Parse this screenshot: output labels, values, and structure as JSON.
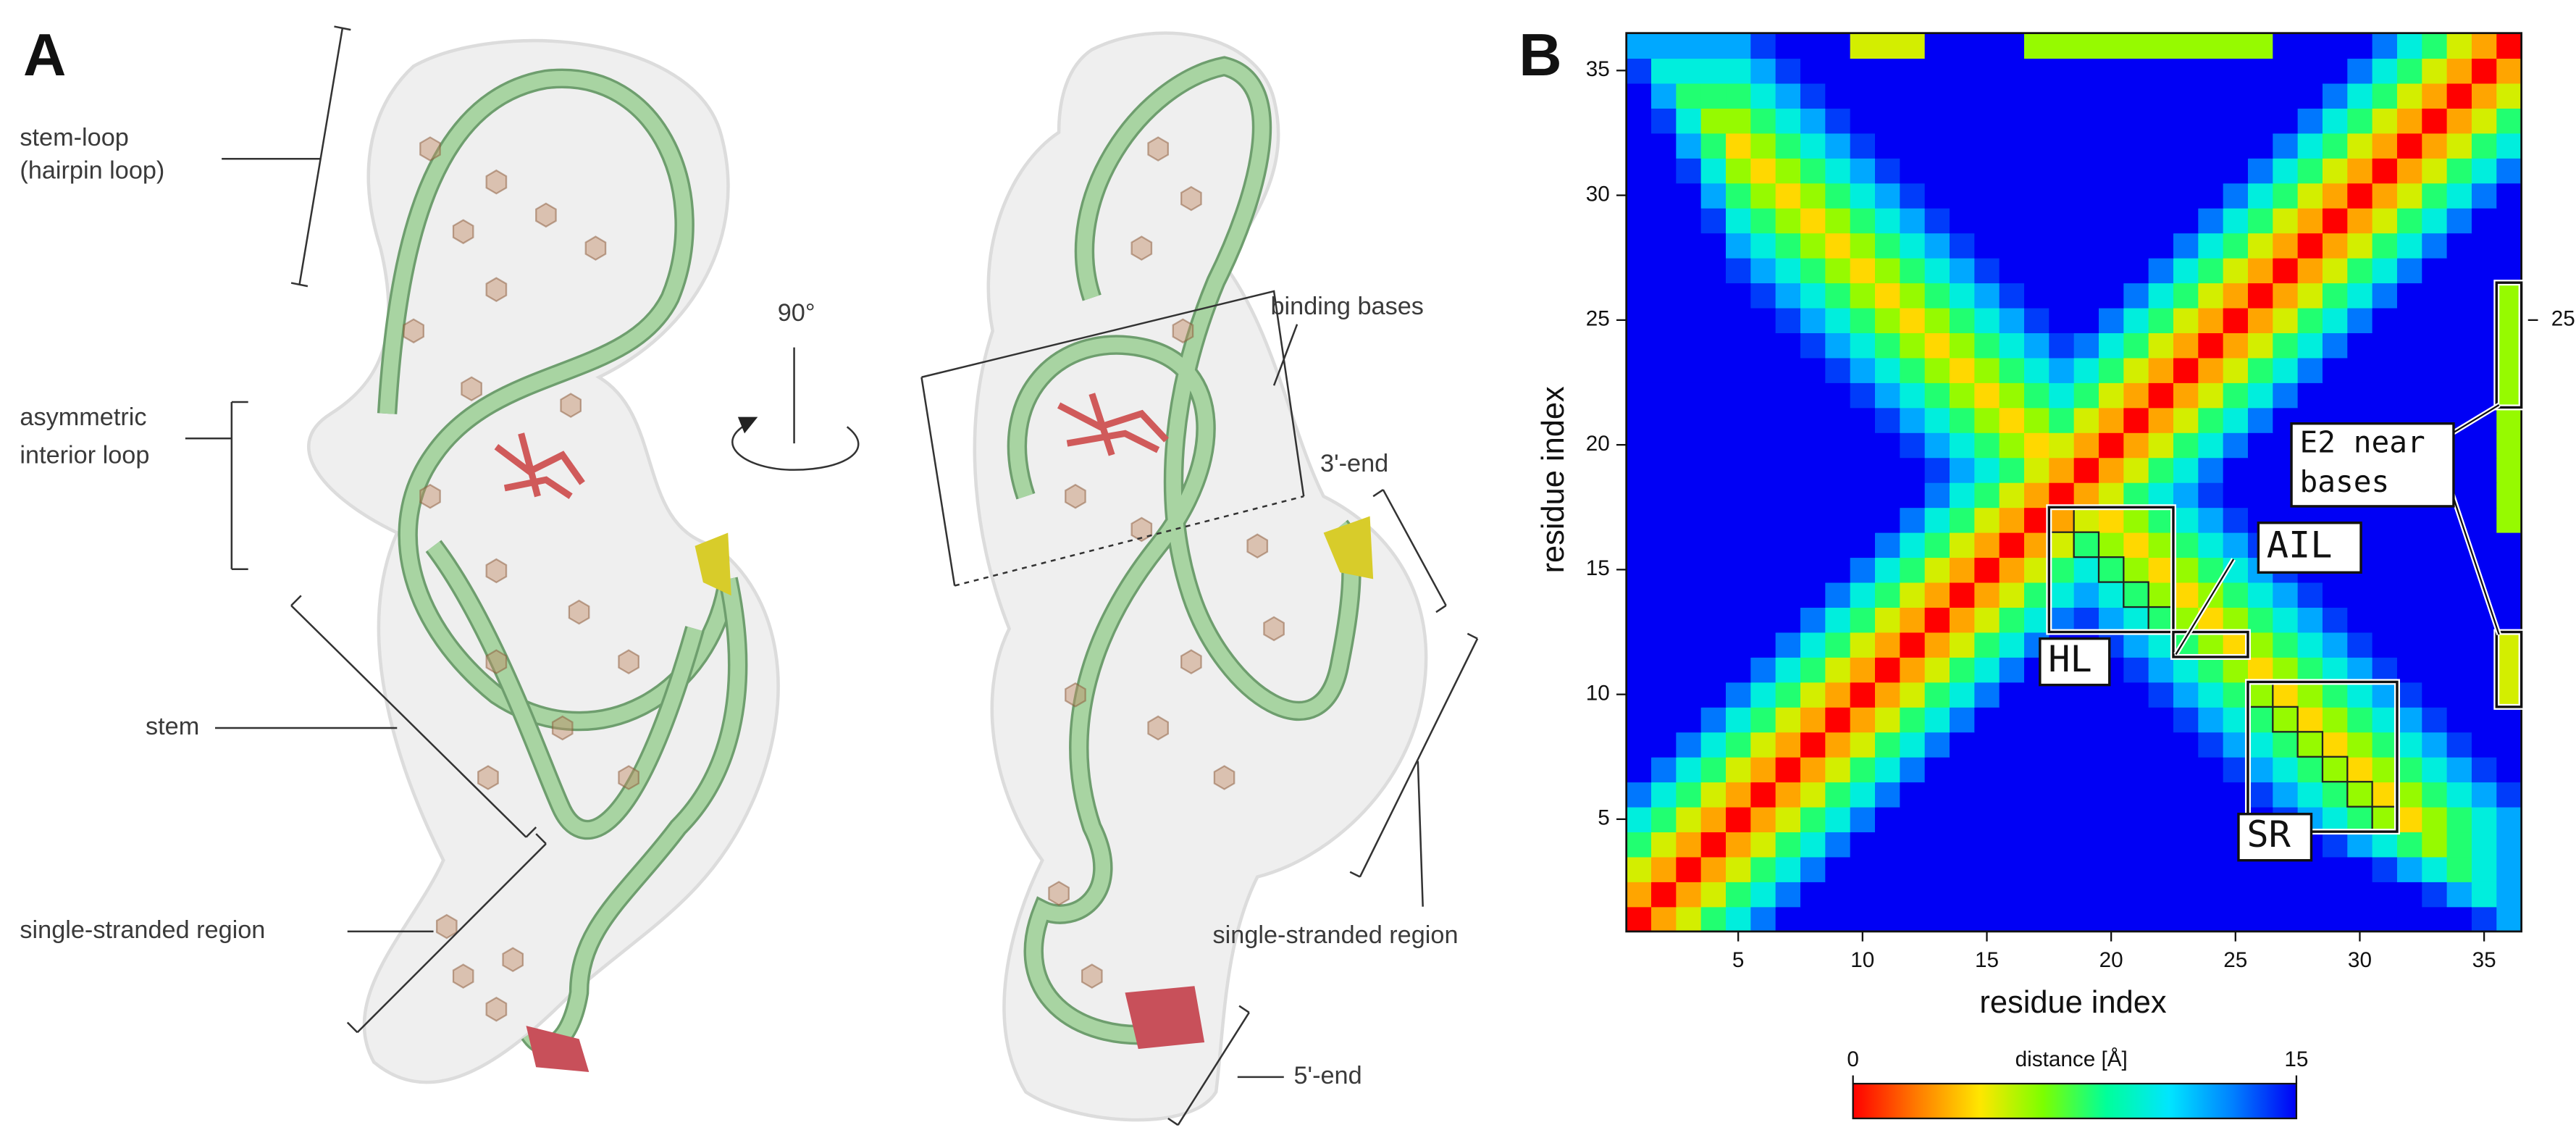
{
  "panel_a": {
    "label": "A",
    "rotation": "90°",
    "left": {
      "stem_loop": [
        "stem-loop",
        "(hairpin loop)"
      ],
      "interior_loop": [
        "asymmetric",
        "interior loop"
      ],
      "stem": "stem",
      "single_stranded": "single-stranded region"
    },
    "right": {
      "binding_bases": "binding bases",
      "three_end": "3'-end",
      "single_stranded": "single-stranded region",
      "five_end": "5'-end"
    }
  },
  "chart_data": {
    "type": "heatmap",
    "panel_label": "B",
    "xlabel": "residue index",
    "ylabel": "residue index",
    "x": [
      1,
      2,
      3,
      4,
      5,
      6,
      7,
      8,
      9,
      10,
      11,
      12,
      13,
      14,
      15,
      16,
      17,
      18,
      19,
      20,
      21,
      22,
      23,
      24,
      25,
      26,
      27,
      28,
      29,
      30,
      31,
      32,
      33,
      34,
      35,
      36
    ],
    "y": [
      1,
      2,
      3,
      4,
      5,
      6,
      7,
      8,
      9,
      10,
      11,
      12,
      13,
      14,
      15,
      16,
      17,
      18,
      19,
      20,
      21,
      22,
      23,
      24,
      25,
      26,
      27,
      28,
      29,
      30,
      31,
      32,
      33,
      34,
      35,
      36
    ],
    "xlim": [
      0.5,
      36.5
    ],
    "ylim": [
      0.5,
      36.5
    ],
    "xticks": [
      5,
      10,
      15,
      20,
      25,
      30,
      35
    ],
    "yticks": [
      5,
      10,
      15,
      20,
      25,
      30,
      35
    ],
    "y2lim": [
      0.5,
      36.5
    ],
    "y2ticks": [
      25
    ],
    "zlim": [
      0,
      15
    ],
    "colorbar_ticks": [
      0,
      15
    ],
    "colorbar_label": "distance  [Å]",
    "colorscale": [
      "#ff0000",
      "#ff7a00",
      "#ffe600",
      "#7cff00",
      "#00ff9a",
      "#00e5ff",
      "#0080ff",
      "#0000f5"
    ],
    "annotations": [
      {
        "text": [
          "HL"
        ]
      },
      {
        "text": [
          "AIL"
        ]
      },
      {
        "text": [
          "SR"
        ]
      },
      {
        "text": [
          "E2 near",
          "bases"
        ]
      }
    ],
    "z": [
      [
        0,
        3,
        5,
        8,
        10,
        13,
        15,
        15,
        15,
        15,
        15,
        15,
        15,
        15,
        15,
        15,
        15,
        15,
        15,
        15,
        15,
        15,
        15,
        15,
        15,
        15,
        15,
        15,
        15,
        15,
        15,
        15,
        15,
        15,
        14,
        12
      ],
      [
        3,
        0,
        3,
        5,
        8,
        10,
        13,
        15,
        15,
        15,
        15,
        15,
        15,
        15,
        15,
        15,
        15,
        15,
        15,
        15,
        15,
        15,
        15,
        15,
        15,
        15,
        15,
        15,
        15,
        15,
        15,
        15,
        14,
        12,
        10,
        12
      ],
      [
        5,
        3,
        0,
        3,
        5,
        8,
        10,
        13,
        15,
        15,
        15,
        15,
        15,
        15,
        15,
        15,
        15,
        15,
        15,
        15,
        15,
        15,
        15,
        15,
        15,
        15,
        15,
        15,
        15,
        15,
        14,
        12,
        10,
        8,
        10,
        12
      ],
      [
        8,
        5,
        3,
        0,
        3,
        5,
        8,
        10,
        13,
        15,
        15,
        15,
        15,
        15,
        15,
        15,
        15,
        15,
        15,
        15,
        15,
        15,
        15,
        15,
        15,
        15,
        15,
        15,
        14,
        12,
        10,
        8,
        6,
        8,
        10,
        12
      ],
      [
        10,
        8,
        5,
        3,
        0,
        3,
        5,
        8,
        10,
        13,
        15,
        15,
        15,
        15,
        15,
        15,
        15,
        15,
        15,
        15,
        15,
        15,
        15,
        15,
        15,
        15,
        14,
        12,
        10,
        8,
        6,
        4,
        6,
        8,
        10,
        12
      ],
      [
        13,
        10,
        8,
        5,
        3,
        0,
        3,
        5,
        8,
        10,
        13,
        15,
        15,
        15,
        15,
        15,
        15,
        15,
        15,
        15,
        15,
        15,
        15,
        15,
        15,
        14,
        12,
        10,
        8,
        6,
        4,
        6,
        8,
        10,
        12,
        14
      ],
      [
        15,
        13,
        10,
        8,
        5,
        3,
        0,
        3,
        5,
        8,
        10,
        13,
        15,
        15,
        15,
        15,
        15,
        15,
        15,
        15,
        15,
        15,
        15,
        15,
        14,
        12,
        10,
        8,
        6,
        4,
        6,
        8,
        10,
        12,
        14,
        15
      ],
      [
        15,
        15,
        13,
        10,
        8,
        5,
        3,
        0,
        3,
        5,
        8,
        10,
        13,
        15,
        15,
        15,
        15,
        15,
        15,
        15,
        15,
        15,
        15,
        14,
        12,
        10,
        8,
        6,
        4,
        6,
        8,
        10,
        12,
        14,
        15,
        15
      ],
      [
        15,
        15,
        15,
        13,
        10,
        8,
        5,
        3,
        0,
        3,
        5,
        8,
        10,
        13,
        15,
        15,
        15,
        15,
        15,
        15,
        15,
        15,
        14,
        12,
        10,
        8,
        6,
        4,
        6,
        8,
        10,
        12,
        14,
        15,
        15,
        15
      ],
      [
        15,
        15,
        15,
        15,
        13,
        10,
        8,
        5,
        3,
        0,
        3,
        5,
        8,
        10,
        13,
        15,
        15,
        15,
        15,
        15,
        15,
        14,
        12,
        10,
        8,
        6,
        4,
        6,
        8,
        10,
        12,
        14,
        15,
        15,
        15,
        5
      ],
      [
        15,
        15,
        15,
        15,
        15,
        13,
        10,
        8,
        5,
        3,
        0,
        3,
        5,
        8,
        10,
        13,
        15,
        15,
        15,
        15,
        14,
        12,
        10,
        8,
        6,
        4,
        6,
        8,
        10,
        12,
        14,
        15,
        15,
        15,
        15,
        5
      ],
      [
        15,
        15,
        15,
        15,
        15,
        15,
        13,
        10,
        8,
        5,
        3,
        0,
        3,
        5,
        8,
        10,
        13,
        15,
        15,
        14,
        12,
        10,
        8,
        6,
        4,
        6,
        8,
        10,
        12,
        14,
        15,
        15,
        15,
        15,
        15,
        5
      ],
      [
        15,
        15,
        15,
        15,
        15,
        15,
        15,
        13,
        10,
        8,
        5,
        3,
        0,
        3,
        5,
        8,
        10,
        13,
        14,
        12,
        10,
        8,
        6,
        4,
        6,
        8,
        10,
        12,
        14,
        15,
        15,
        15,
        15,
        15,
        15,
        15
      ],
      [
        15,
        15,
        15,
        15,
        15,
        15,
        15,
        15,
        13,
        10,
        8,
        5,
        3,
        0,
        3,
        5,
        8,
        10,
        12,
        10,
        8,
        6,
        4,
        6,
        8,
        10,
        12,
        14,
        15,
        15,
        15,
        15,
        15,
        15,
        15,
        15
      ],
      [
        15,
        15,
        15,
        15,
        15,
        15,
        15,
        15,
        15,
        13,
        10,
        8,
        5,
        3,
        0,
        3,
        5,
        8,
        10,
        8,
        6,
        4,
        6,
        8,
        10,
        12,
        14,
        15,
        15,
        15,
        15,
        15,
        15,
        15,
        15,
        15
      ],
      [
        15,
        15,
        15,
        15,
        15,
        15,
        15,
        15,
        15,
        15,
        13,
        10,
        8,
        5,
        3,
        0,
        3,
        5,
        8,
        6,
        4,
        6,
        8,
        10,
        12,
        14,
        15,
        15,
        15,
        15,
        15,
        15,
        15,
        15,
        15,
        15
      ],
      [
        15,
        15,
        15,
        15,
        15,
        15,
        15,
        15,
        15,
        15,
        15,
        13,
        10,
        8,
        5,
        3,
        0,
        3,
        5,
        4,
        6,
        8,
        10,
        12,
        14,
        15,
        15,
        15,
        15,
        15,
        15,
        15,
        15,
        15,
        15,
        6
      ],
      [
        15,
        15,
        15,
        15,
        15,
        15,
        15,
        15,
        15,
        15,
        15,
        15,
        13,
        10,
        8,
        5,
        3,
        0,
        3,
        5,
        8,
        10,
        12,
        14,
        15,
        15,
        15,
        15,
        15,
        15,
        15,
        15,
        15,
        15,
        15,
        6
      ],
      [
        15,
        15,
        15,
        15,
        15,
        15,
        15,
        15,
        15,
        15,
        15,
        15,
        14,
        12,
        10,
        8,
        5,
        3,
        0,
        3,
        5,
        8,
        10,
        13,
        15,
        15,
        15,
        15,
        15,
        15,
        15,
        15,
        15,
        15,
        15,
        6
      ],
      [
        15,
        15,
        15,
        15,
        15,
        15,
        15,
        15,
        15,
        15,
        15,
        14,
        12,
        10,
        8,
        6,
        4,
        5,
        3,
        0,
        3,
        5,
        8,
        10,
        13,
        15,
        15,
        15,
        15,
        15,
        15,
        15,
        15,
        15,
        15,
        6
      ],
      [
        15,
        15,
        15,
        15,
        15,
        15,
        15,
        15,
        15,
        15,
        14,
        12,
        10,
        8,
        6,
        4,
        6,
        8,
        5,
        3,
        0,
        3,
        5,
        8,
        10,
        13,
        15,
        15,
        15,
        15,
        15,
        15,
        15,
        15,
        15,
        6
      ],
      [
        15,
        15,
        15,
        15,
        15,
        15,
        15,
        15,
        15,
        14,
        12,
        10,
        8,
        6,
        4,
        6,
        8,
        10,
        8,
        5,
        3,
        0,
        3,
        5,
        8,
        10,
        13,
        15,
        15,
        15,
        15,
        15,
        15,
        15,
        15,
        6
      ],
      [
        15,
        15,
        15,
        15,
        15,
        15,
        15,
        15,
        14,
        12,
        10,
        8,
        6,
        4,
        6,
        8,
        10,
        12,
        10,
        8,
        5,
        3,
        0,
        3,
        5,
        8,
        10,
        13,
        15,
        15,
        15,
        15,
        15,
        15,
        15,
        6
      ],
      [
        15,
        15,
        15,
        15,
        15,
        15,
        15,
        14,
        12,
        10,
        8,
        6,
        4,
        6,
        8,
        10,
        12,
        14,
        13,
        10,
        8,
        5,
        3,
        0,
        3,
        5,
        8,
        10,
        13,
        15,
        15,
        15,
        15,
        15,
        15,
        6
      ],
      [
        15,
        15,
        15,
        15,
        15,
        15,
        14,
        12,
        10,
        8,
        6,
        4,
        6,
        8,
        10,
        12,
        14,
        15,
        15,
        13,
        10,
        8,
        5,
        3,
        0,
        3,
        5,
        8,
        10,
        13,
        15,
        15,
        15,
        15,
        15,
        6
      ],
      [
        15,
        15,
        15,
        15,
        15,
        14,
        12,
        10,
        8,
        6,
        4,
        6,
        8,
        10,
        12,
        14,
        15,
        15,
        15,
        15,
        13,
        10,
        8,
        5,
        3,
        0,
        3,
        5,
        8,
        10,
        13,
        15,
        15,
        15,
        15,
        6
      ],
      [
        15,
        15,
        15,
        15,
        14,
        12,
        10,
        8,
        6,
        4,
        6,
        8,
        10,
        12,
        14,
        15,
        15,
        15,
        15,
        15,
        15,
        13,
        10,
        8,
        5,
        3,
        0,
        3,
        5,
        8,
        10,
        13,
        15,
        15,
        15,
        15
      ],
      [
        15,
        15,
        15,
        15,
        12,
        10,
        8,
        6,
        4,
        6,
        8,
        10,
        12,
        14,
        15,
        15,
        15,
        15,
        15,
        15,
        15,
        15,
        13,
        10,
        8,
        5,
        3,
        0,
        3,
        5,
        8,
        10,
        13,
        15,
        15,
        15
      ],
      [
        15,
        15,
        15,
        14,
        10,
        8,
        6,
        4,
        6,
        8,
        10,
        12,
        14,
        15,
        15,
        15,
        15,
        15,
        15,
        15,
        15,
        15,
        15,
        13,
        10,
        8,
        5,
        3,
        0,
        3,
        5,
        8,
        10,
        13,
        15,
        15
      ],
      [
        15,
        15,
        15,
        12,
        8,
        6,
        4,
        6,
        8,
        10,
        12,
        14,
        15,
        15,
        15,
        15,
        15,
        15,
        15,
        15,
        15,
        15,
        15,
        15,
        13,
        10,
        8,
        5,
        3,
        0,
        3,
        5,
        8,
        10,
        13,
        15
      ],
      [
        15,
        15,
        14,
        10,
        6,
        4,
        6,
        8,
        10,
        12,
        14,
        15,
        15,
        15,
        15,
        15,
        15,
        15,
        15,
        15,
        15,
        15,
        15,
        15,
        15,
        13,
        10,
        8,
        5,
        3,
        0,
        3,
        5,
        8,
        10,
        13
      ],
      [
        15,
        15,
        12,
        8,
        4,
        6,
        8,
        10,
        12,
        14,
        15,
        15,
        15,
        15,
        15,
        15,
        15,
        15,
        15,
        15,
        15,
        15,
        15,
        15,
        15,
        15,
        13,
        10,
        8,
        5,
        3,
        0,
        3,
        5,
        8,
        10
      ],
      [
        15,
        14,
        10,
        6,
        6,
        8,
        10,
        12,
        14,
        15,
        15,
        15,
        15,
        15,
        15,
        15,
        15,
        15,
        15,
        15,
        15,
        15,
        15,
        15,
        15,
        15,
        15,
        13,
        10,
        8,
        5,
        3,
        0,
        3,
        5,
        8
      ],
      [
        15,
        12,
        8,
        8,
        8,
        10,
        12,
        14,
        15,
        15,
        15,
        15,
        15,
        15,
        15,
        15,
        15,
        15,
        15,
        15,
        15,
        15,
        15,
        15,
        15,
        15,
        15,
        15,
        13,
        10,
        8,
        5,
        3,
        0,
        3,
        5
      ],
      [
        14,
        10,
        10,
        10,
        10,
        12,
        14,
        15,
        15,
        15,
        15,
        15,
        15,
        15,
        15,
        15,
        15,
        15,
        15,
        15,
        15,
        15,
        15,
        15,
        15,
        15,
        15,
        15,
        15,
        13,
        10,
        8,
        5,
        3,
        0,
        3
      ],
      [
        12,
        12,
        12,
        12,
        12,
        14,
        15,
        15,
        15,
        5,
        5,
        5,
        15,
        15,
        15,
        15,
        6,
        6,
        6,
        6,
        6,
        6,
        6,
        6,
        6,
        6,
        15,
        15,
        15,
        15,
        13,
        10,
        8,
        5,
        3,
        0
      ]
    ]
  }
}
